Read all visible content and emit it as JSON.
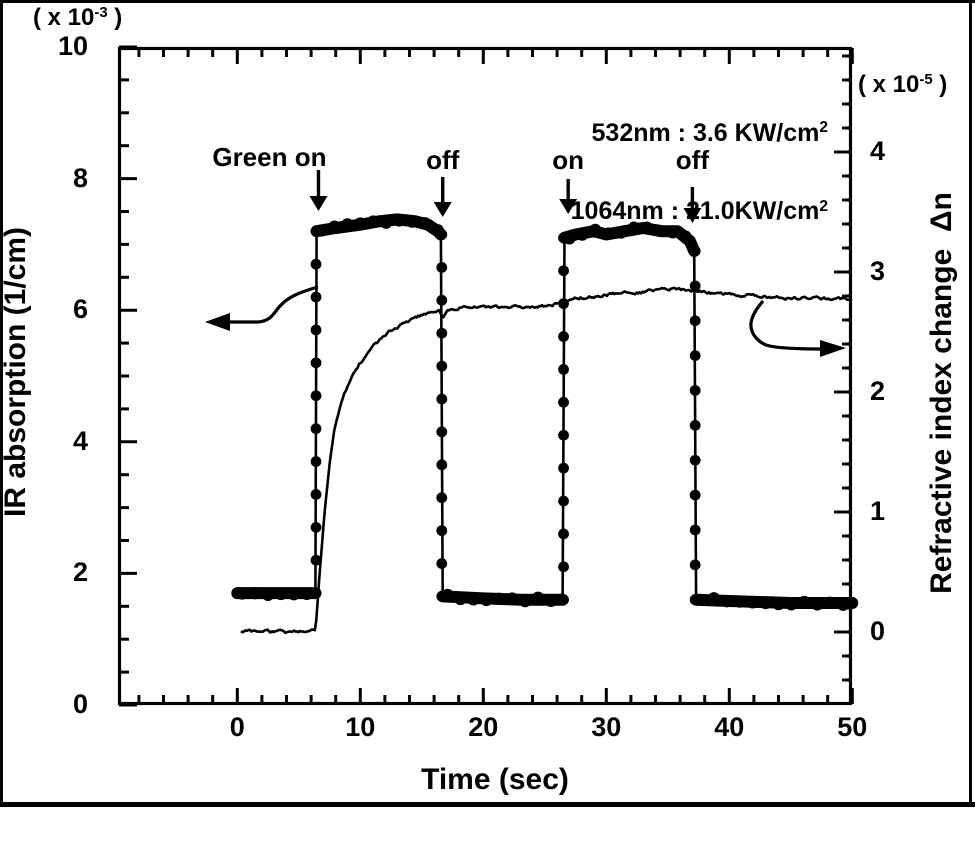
{
  "figure": {
    "bg": "#ffffff",
    "ink": "#000000",
    "scale_label_left": {
      "pre": "( x 10",
      "sup": "-3",
      "post": " )"
    },
    "scale_label_right": {
      "pre": "( x 10",
      "sup": "-5",
      "post": " )"
    },
    "legend": {
      "lines": [
        {
          "pre": "532nm : 3.6 KW/cm",
          "sup": "2"
        },
        {
          "pre": "1064nm : 21.0KW/cm",
          "sup": "2"
        }
      ]
    },
    "axis_left_label": "IR absorption (1/cm)",
    "axis_right_label": "Refractive index change  Δn",
    "axis_x_label": "Time (sec)"
  },
  "chart_data": {
    "type": "line",
    "title": "",
    "xlabel": "Time (sec)",
    "ylabel_left": "IR absorption (1/cm) (x 10^-3)",
    "ylabel_right": "Refractive index change Δn (x 10^-5)",
    "x_ticks": [
      0,
      10,
      20,
      30,
      40,
      50
    ],
    "x_minor_step": 2,
    "x_range": [
      -9.7,
      50
    ],
    "left_ticks": [
      0,
      2,
      4,
      6,
      8,
      10
    ],
    "left_minor_step": 0.5,
    "left_range": [
      0,
      10
    ],
    "right_ticks": [
      0,
      1,
      2,
      3,
      4
    ],
    "right_minor_step": 0.2,
    "right_range": [
      -0.6,
      4.8
    ],
    "grid": false,
    "events": [
      {
        "label": "Green on",
        "t": 6.6,
        "align": "right"
      },
      {
        "label": "off",
        "t": 16.7,
        "align": "center"
      },
      {
        "label": "on",
        "t": 26.9,
        "align": "center"
      },
      {
        "label": "off",
        "t": 37.0,
        "align": "center"
      }
    ],
    "series": [
      {
        "name": "IR absorption (thick dotted curve, left axis)",
        "axis": "left",
        "style": "thick-dots",
        "points": [
          [
            0,
            1.7
          ],
          [
            3,
            1.7
          ],
          [
            6.35,
            1.7
          ],
          [
            6.45,
            7.2
          ],
          [
            8,
            7.25
          ],
          [
            10,
            7.3
          ],
          [
            11.5,
            7.35
          ],
          [
            13,
            7.38
          ],
          [
            14.5,
            7.35
          ],
          [
            15.5,
            7.3
          ],
          [
            16.3,
            7.2
          ],
          [
            16.55,
            7.15
          ],
          [
            16.7,
            1.65
          ],
          [
            20,
            1.62
          ],
          [
            23,
            1.6
          ],
          [
            26.45,
            1.6
          ],
          [
            26.6,
            7.1
          ],
          [
            27.5,
            7.15
          ],
          [
            29,
            7.2
          ],
          [
            30,
            7.15
          ],
          [
            31.5,
            7.2
          ],
          [
            33,
            7.25
          ],
          [
            34.5,
            7.2
          ],
          [
            35.8,
            7.2
          ],
          [
            36.8,
            7.05
          ],
          [
            37.15,
            6.9
          ],
          [
            37.3,
            1.6
          ],
          [
            40,
            1.58
          ],
          [
            45,
            1.55
          ],
          [
            50,
            1.55
          ]
        ]
      },
      {
        "name": "Refractive index change Δn (thin noisy curve, right axis)",
        "axis": "right",
        "style": "thin-noisy",
        "noise": 0.022,
        "points": [
          [
            0.3,
            0.0
          ],
          [
            2,
            0.01
          ],
          [
            4,
            0.0
          ],
          [
            6.35,
            0.01
          ],
          [
            6.5,
            0.2
          ],
          [
            6.7,
            0.5
          ],
          [
            7.1,
            1.0
          ],
          [
            7.5,
            1.4
          ],
          [
            7.9,
            1.7
          ],
          [
            8.3,
            1.86
          ],
          [
            8.7,
            1.98
          ],
          [
            9.1,
            2.08
          ],
          [
            9.9,
            2.23
          ],
          [
            10.7,
            2.34
          ],
          [
            11.5,
            2.43
          ],
          [
            12.3,
            2.5
          ],
          [
            13.2,
            2.55
          ],
          [
            14,
            2.59
          ],
          [
            14.8,
            2.63
          ],
          [
            15.6,
            2.66
          ],
          [
            16.4,
            2.68
          ],
          [
            16.7,
            2.63
          ],
          [
            17.3,
            2.69
          ],
          [
            18,
            2.7
          ],
          [
            19,
            2.71
          ],
          [
            20.5,
            2.7
          ],
          [
            22,
            2.71
          ],
          [
            23.5,
            2.7
          ],
          [
            25,
            2.72
          ],
          [
            26.5,
            2.74
          ],
          [
            27.5,
            2.78
          ],
          [
            28.6,
            2.79
          ],
          [
            30,
            2.81
          ],
          [
            31.5,
            2.83
          ],
          [
            32.7,
            2.83
          ],
          [
            34,
            2.85
          ],
          [
            35.5,
            2.86
          ],
          [
            36.7,
            2.85
          ],
          [
            38,
            2.83
          ],
          [
            39.5,
            2.82
          ],
          [
            40.8,
            2.81
          ],
          [
            42.5,
            2.8
          ],
          [
            44.8,
            2.78
          ],
          [
            46.5,
            2.79
          ],
          [
            48,
            2.78
          ],
          [
            50,
            2.78
          ]
        ]
      }
    ]
  }
}
